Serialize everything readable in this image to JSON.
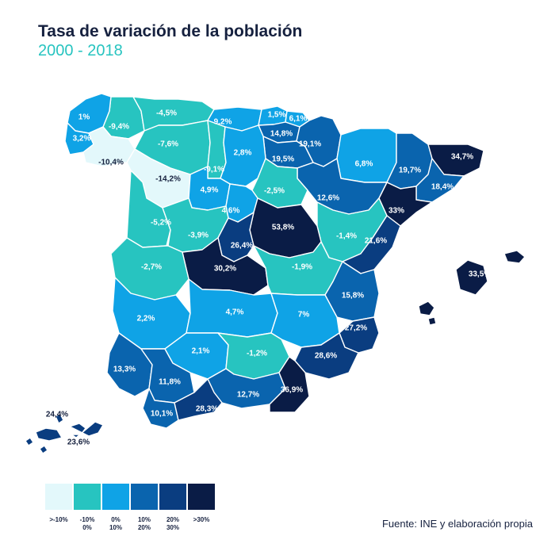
{
  "header": {
    "title": "Tasa de variación de la población",
    "subtitle": "2000 - 2018"
  },
  "colors": {
    "cls0": "#e3f8fb",
    "cls1": "#27c4c0",
    "cls2": "#0fa3e6",
    "cls3": "#0a64ae",
    "cls4": "#0a3d80",
    "cls5": "#0a1c46",
    "title": "#16213f",
    "subtitle": "#27c4c0"
  },
  "legend": {
    "items": [
      {
        "label": ">-10%"
      },
      {
        "label": "-10%\n0%"
      },
      {
        "label": "0%\n10%"
      },
      {
        "label": "10%\n20%"
      },
      {
        "label": "20%\n30%"
      },
      {
        "label": ">30%"
      }
    ]
  },
  "source": "Fuente: INE y elaboración propia",
  "provinces": [
    {
      "name": "Lugo",
      "label": "-9,4%",
      "value": -9.4,
      "cls": 1
    },
    {
      "name": "A Coruña",
      "label": "1%",
      "value": 1,
      "cls": 2
    },
    {
      "name": "Pontevedra",
      "label": "3,2%",
      "value": 3.2,
      "cls": 2
    },
    {
      "name": "Ourense",
      "label": "-10,4%",
      "value": -10.4,
      "cls": 0
    },
    {
      "name": "Asturias",
      "label": "-4,5%",
      "value": -4.5,
      "cls": 1
    },
    {
      "name": "Cantabria",
      "label": "9,2%",
      "value": 9.2,
      "cls": 2
    },
    {
      "name": "Bizkaia",
      "label": "1,5%",
      "value": 1.5,
      "cls": 2
    },
    {
      "name": "Gipuzkoa",
      "label": "6,1%",
      "value": 6.1,
      "cls": 2
    },
    {
      "name": "Araba/Álava",
      "label": "14,8%",
      "value": 14.8,
      "cls": 3
    },
    {
      "name": "Navarra",
      "label": "19,1%",
      "value": 19.1,
      "cls": 3
    },
    {
      "name": "La Rioja",
      "label": "19,5%",
      "value": 19.5,
      "cls": 3
    },
    {
      "name": "Huesca",
      "label": "6,8%",
      "value": 6.8,
      "cls": 2
    },
    {
      "name": "Lleida",
      "label": "19,7%",
      "value": 19.7,
      "cls": 3
    },
    {
      "name": "Girona",
      "label": "34,7%",
      "value": 34.7,
      "cls": 5
    },
    {
      "name": "Barcelona",
      "label": "18,4%",
      "value": 18.4,
      "cls": 3
    },
    {
      "name": "Tarragona",
      "label": "33%",
      "value": 33,
      "cls": 5
    },
    {
      "name": "Zaragoza",
      "label": "12,6%",
      "value": 12.6,
      "cls": 3
    },
    {
      "name": "Teruel",
      "label": "-1,4%",
      "value": -1.4,
      "cls": 1
    },
    {
      "name": "León",
      "label": "-7,6%",
      "value": -7.6,
      "cls": 1
    },
    {
      "name": "Palencia",
      "label": "-9,1%",
      "value": -9.1,
      "cls": 1
    },
    {
      "name": "Burgos",
      "label": "2,8%",
      "value": 2.8,
      "cls": 2
    },
    {
      "name": "Zamora",
      "label": "-14,2%",
      "value": -14.2,
      "cls": 0
    },
    {
      "name": "Valladolid",
      "label": "4,9%",
      "value": 4.9,
      "cls": 2
    },
    {
      "name": "Soria",
      "label": "-2,5%",
      "value": -2.5,
      "cls": 1
    },
    {
      "name": "Salamanca",
      "label": "-5,2%",
      "value": -5.2,
      "cls": 1
    },
    {
      "name": "Segovia",
      "label": "4,6%",
      "value": 4.6,
      "cls": 2
    },
    {
      "name": "Ávila",
      "label": "-3,9%",
      "value": -3.9,
      "cls": 1
    },
    {
      "name": "Guadalajara",
      "label": "53,8%",
      "value": 53.8,
      "cls": 5
    },
    {
      "name": "Madrid",
      "label": "26,4%",
      "value": 26.4,
      "cls": 4
    },
    {
      "name": "Toledo",
      "label": "30,2%",
      "value": 30.2,
      "cls": 5
    },
    {
      "name": "Cuenca",
      "label": "-1,9%",
      "value": -1.9,
      "cls": 1
    },
    {
      "name": "Castellón",
      "label": "21,6%",
      "value": 21.6,
      "cls": 4
    },
    {
      "name": "Valencia",
      "label": "15,8%",
      "value": 15.8,
      "cls": 3
    },
    {
      "name": "Alicante",
      "label": "27,2%",
      "value": 27.2,
      "cls": 4
    },
    {
      "name": "Cáceres",
      "label": "-2,7%",
      "value": -2.7,
      "cls": 1
    },
    {
      "name": "Badajoz",
      "label": "2,2%",
      "value": 2.2,
      "cls": 2
    },
    {
      "name": "Ciudad Real",
      "label": "4,7%",
      "value": 4.7,
      "cls": 2
    },
    {
      "name": "Albacete",
      "label": "7%",
      "value": 7,
      "cls": 2
    },
    {
      "name": "Murcia",
      "label": "28,6%",
      "value": 28.6,
      "cls": 4
    },
    {
      "name": "Huelva",
      "label": "13,3%",
      "value": 13.3,
      "cls": 3
    },
    {
      "name": "Sevilla",
      "label": "11,8%",
      "value": 11.8,
      "cls": 3
    },
    {
      "name": "Córdoba",
      "label": "2,1%",
      "value": 2.1,
      "cls": 2
    },
    {
      "name": "Jaén",
      "label": "-1,2%",
      "value": -1.2,
      "cls": 1
    },
    {
      "name": "Granada",
      "label": "12,7%",
      "value": 12.7,
      "cls": 3
    },
    {
      "name": "Almería",
      "label": "36,9%",
      "value": 36.9,
      "cls": 5
    },
    {
      "name": "Cádiz",
      "label": "10,1%",
      "value": 10.1,
      "cls": 3
    },
    {
      "name": "Málaga",
      "label": "28,3%",
      "value": 28.3,
      "cls": 4
    },
    {
      "name": "Illes Balears",
      "label": "33,5%",
      "value": 33.5,
      "cls": 5
    },
    {
      "name": "Santa Cruz de Tenerife",
      "label": "24,4%",
      "value": 24.4,
      "cls": 4
    },
    {
      "name": "Las Palmas",
      "label": "23,6%",
      "value": 23.6,
      "cls": 4
    }
  ]
}
